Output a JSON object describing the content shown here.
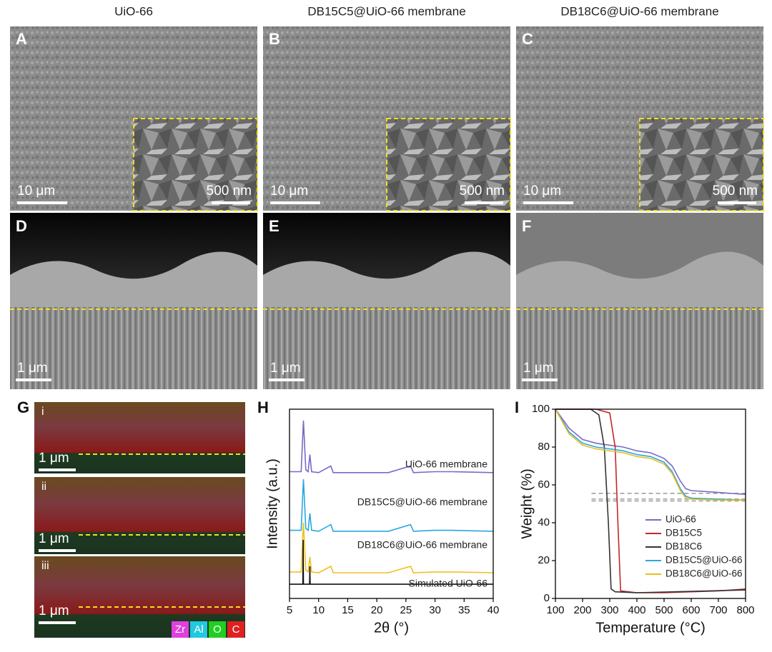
{
  "column_titles": [
    "UiO-66",
    "DB15C5@UiO-66  membrane",
    "DB18C6@UiO-66 membrane"
  ],
  "sem_panels": [
    {
      "letter": "A",
      "scale": "10 μm",
      "inset_scale": "500 nm"
    },
    {
      "letter": "B",
      "scale": "10 μm",
      "inset_scale": "500 nm"
    },
    {
      "letter": "C",
      "scale": "10 μm",
      "inset_scale": "500 nm"
    }
  ],
  "cross_panels": [
    {
      "letter": "D",
      "scale": "1 μm"
    },
    {
      "letter": "E",
      "scale": "1 μm"
    },
    {
      "letter": "F",
      "scale": "1 μm"
    }
  ],
  "eds_panel": {
    "letter": "G",
    "subpanels": [
      {
        "label": "i",
        "scale": "1 μm"
      },
      {
        "label": "ii",
        "scale": "1 μm"
      },
      {
        "label": "iii",
        "scale": "1 μm"
      }
    ],
    "elements": [
      {
        "name": "Zr",
        "color": "#e040e0"
      },
      {
        "name": "Al",
        "color": "#20c8e0"
      },
      {
        "name": "O",
        "color": "#20d020"
      },
      {
        "name": "C",
        "color": "#e02020"
      }
    ]
  },
  "chart_data": [
    {
      "panel": "H",
      "type": "line",
      "xlabel": "2θ (°)",
      "ylabel": "Intensity (a.u.)",
      "xlim": [
        5,
        40
      ],
      "xticks": [
        5,
        10,
        15,
        20,
        25,
        30,
        35,
        40
      ],
      "ylim": [
        0,
        100
      ],
      "series": [
        {
          "name": "UiO-66 membrane",
          "color": "#7b68c8",
          "x": [
            5,
            7,
            7.4,
            7.8,
            8.2,
            8.5,
            8.8,
            10,
            12.1,
            12.5,
            14,
            17,
            22,
            25.8,
            26.3,
            30,
            33,
            40
          ],
          "values": [
            67,
            67,
            94,
            68,
            67,
            76,
            67,
            66.5,
            70,
            66.5,
            66.5,
            66.5,
            66.5,
            70,
            66.5,
            67,
            67,
            66.5
          ]
        },
        {
          "name": "DB15C5@UiO-66 membrane",
          "color": "#2aa7e0",
          "x": [
            5,
            7,
            7.4,
            7.8,
            8.2,
            8.5,
            8.8,
            10,
            12.1,
            12.5,
            14,
            17,
            22,
            25.8,
            26.3,
            30,
            33,
            40
          ],
          "values": [
            36,
            36,
            63,
            37,
            36,
            45,
            36,
            35.5,
            39,
            35.5,
            35.5,
            35.5,
            35.5,
            39,
            35.5,
            36,
            36,
            35.5
          ]
        },
        {
          "name": "DB18C6@UiO-66 membrane",
          "color": "#f0c020",
          "x": [
            5,
            7,
            7.4,
            7.8,
            8.2,
            8.5,
            8.8,
            10,
            12.1,
            12.5,
            14,
            17,
            22,
            25.8,
            26.3,
            30,
            33,
            40
          ],
          "values": [
            14,
            14,
            40,
            15,
            14,
            22,
            14,
            13.6,
            17,
            13.6,
            13.6,
            13.6,
            13.6,
            17,
            13.6,
            14,
            14,
            13.6
          ]
        },
        {
          "name": "Simulated UiO-66",
          "color": "#111111",
          "x": [
            5,
            7.3,
            7.35,
            7.4,
            8.45,
            8.5,
            8.55,
            40
          ],
          "values": [
            7.5,
            7.5,
            31,
            7.5,
            7.5,
            17,
            7.5,
            7.5
          ]
        }
      ]
    },
    {
      "panel": "I",
      "type": "line",
      "xlabel": "Temperature (°C)",
      "ylabel": "Weight (%)",
      "xlim": [
        100,
        800
      ],
      "xticks": [
        100,
        200,
        300,
        400,
        500,
        600,
        700,
        800
      ],
      "ylim": [
        0,
        100
      ],
      "yticks": [
        0,
        20,
        40,
        60,
        80,
        100
      ],
      "hlines": [
        55.5,
        52.5,
        51.5
      ],
      "hline_color": "#999999",
      "series": [
        {
          "name": "UiO-66",
          "color": "#7b68c8",
          "x": [
            100,
            150,
            200,
            250,
            300,
            350,
            400,
            450,
            500,
            530,
            560,
            580,
            600,
            700,
            800
          ],
          "values": [
            100,
            90,
            84,
            82,
            81,
            80,
            78,
            77,
            74,
            70,
            62,
            58,
            57,
            56,
            55
          ]
        },
        {
          "name": "DB15C5",
          "color": "#c0282c",
          "x": [
            100,
            250,
            300,
            320,
            330,
            340,
            400,
            500,
            600,
            700,
            800
          ],
          "values": [
            100,
            100,
            98,
            80,
            40,
            4,
            3,
            3,
            3.5,
            4,
            5
          ]
        },
        {
          "name": "DB18C6",
          "color": "#333333",
          "x": [
            100,
            230,
            260,
            280,
            295,
            305,
            320,
            400,
            800
          ],
          "values": [
            100,
            100,
            97,
            80,
            40,
            5,
            3.5,
            3,
            4.5
          ]
        },
        {
          "name": "DB15C5@UiO-66",
          "color": "#2aa7e0",
          "x": [
            100,
            150,
            200,
            250,
            300,
            350,
            400,
            450,
            500,
            530,
            560,
            580,
            600,
            700,
            800
          ],
          "values": [
            100,
            88,
            82,
            80,
            79,
            78,
            76,
            75,
            72,
            67,
            58,
            54,
            53,
            52.5,
            52
          ]
        },
        {
          "name": "DB18C6@UiO-66",
          "color": "#e6c020",
          "x": [
            100,
            150,
            200,
            250,
            300,
            350,
            400,
            450,
            500,
            530,
            560,
            580,
            600,
            700,
            800
          ],
          "values": [
            100,
            87,
            81,
            79,
            78,
            77,
            75,
            74,
            71,
            66,
            57,
            53,
            52.5,
            52,
            52
          ]
        }
      ]
    }
  ]
}
